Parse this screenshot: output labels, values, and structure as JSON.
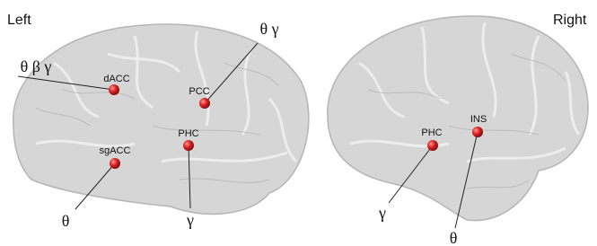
{
  "panels": [
    {
      "title": "Left",
      "nodes": [
        {
          "name": "dACC",
          "bands": "θ β γ"
        },
        {
          "name": "PCC",
          "bands": "θ γ"
        },
        {
          "name": "PHC",
          "bands": "γ"
        },
        {
          "name": "sgACC",
          "bands": "θ"
        }
      ]
    },
    {
      "title": "Right",
      "nodes": [
        {
          "name": "PHC",
          "bands": "γ"
        },
        {
          "name": "INS",
          "bands": "θ"
        }
      ]
    }
  ]
}
